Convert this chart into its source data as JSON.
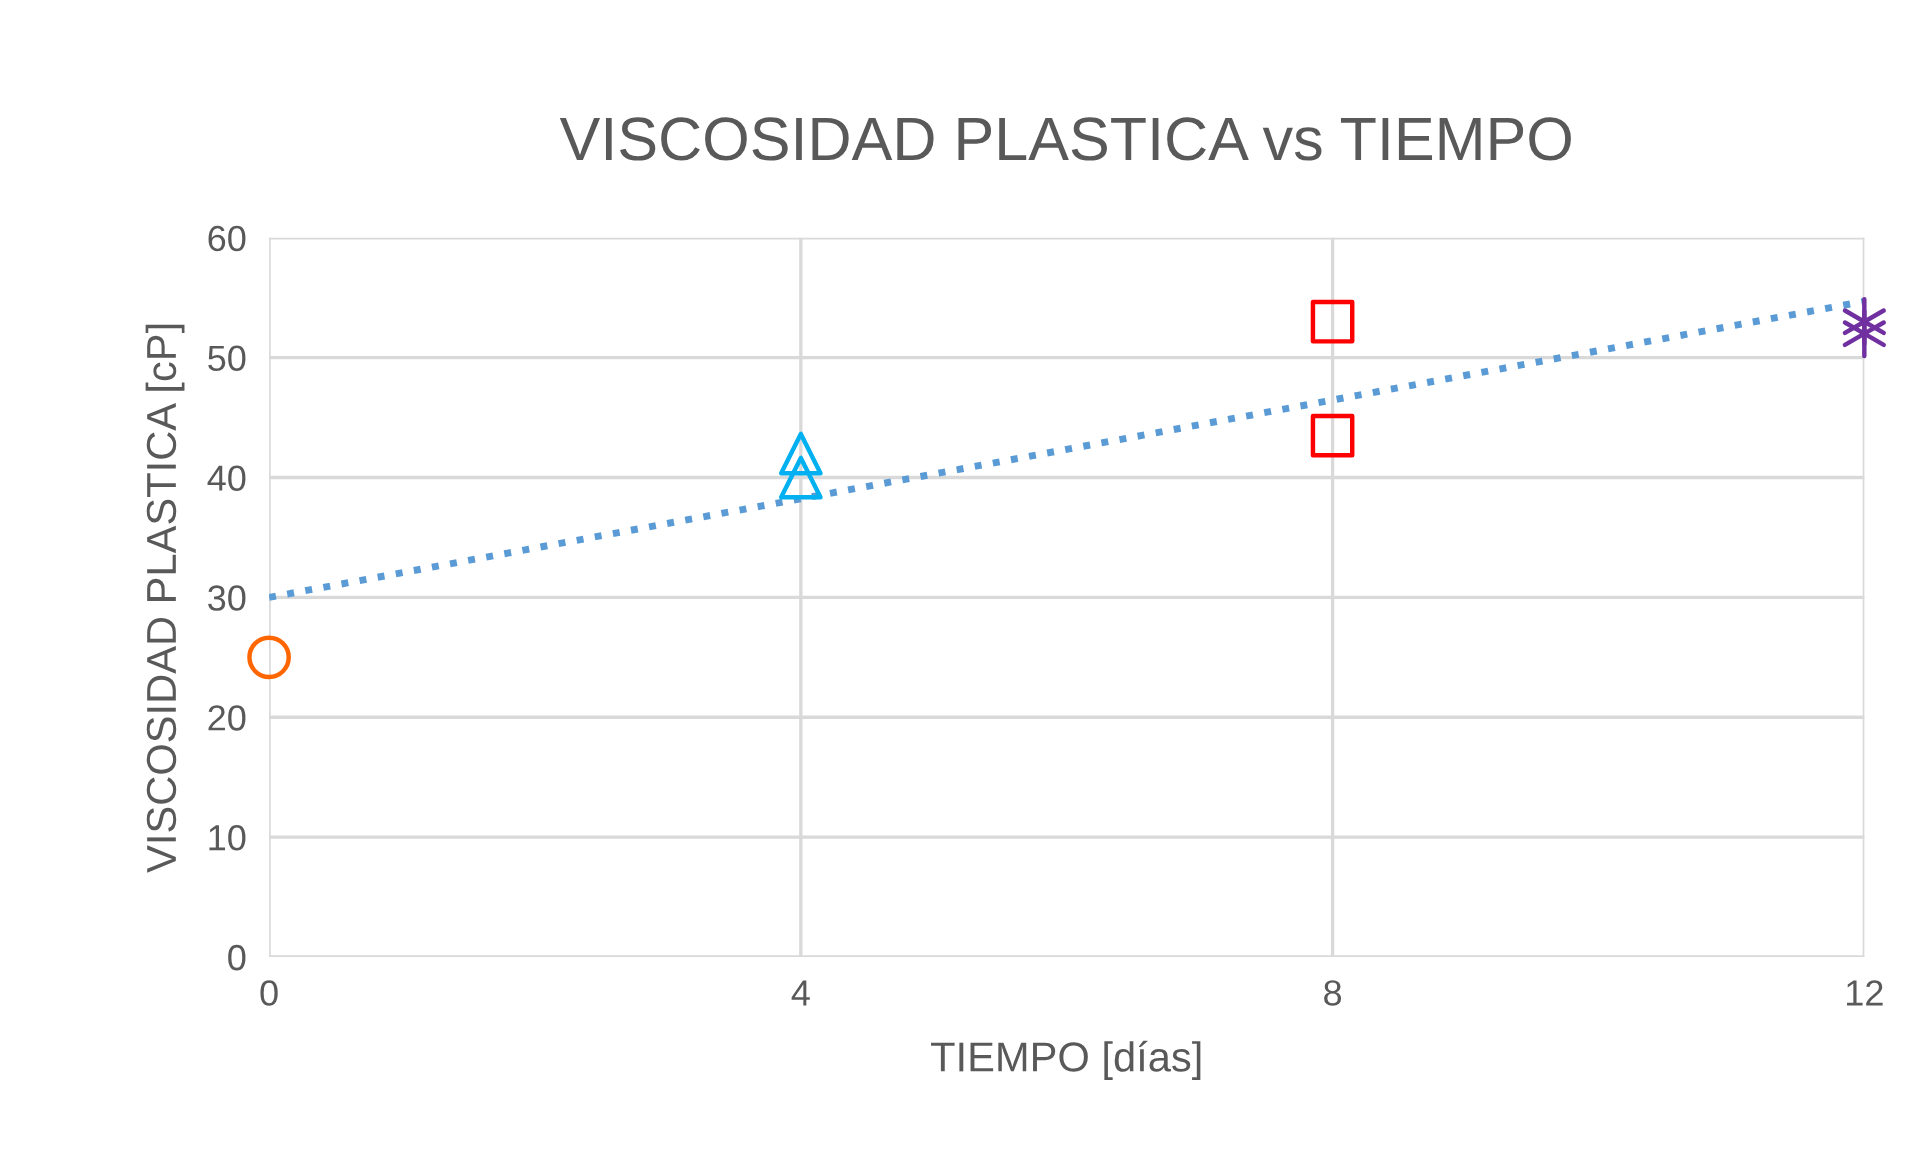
{
  "chart_data": {
    "type": "scatter",
    "title": "VISCOSIDAD PLASTICA vs TIEMPO",
    "xlabel": "TIEMPO [días]",
    "ylabel": "VISCOSIDAD PLASTICA [cP]",
    "xlim": [
      0,
      12
    ],
    "xticks": [
      0,
      4,
      8,
      12
    ],
    "ylim": [
      0,
      60
    ],
    "yticks": [
      0,
      10,
      20,
      30,
      40,
      50,
      60
    ],
    "grid": true,
    "legend": false,
    "series": [
      {
        "color": "#ff6600",
        "marker": "circle",
        "x": [
          0
        ],
        "values": [
          25
        ]
      },
      {
        "color": "#00b0f0",
        "marker": "triangle",
        "x": [
          4,
          4
        ],
        "values": [
          42,
          40
        ]
      },
      {
        "color": "#ff0000",
        "marker": "square",
        "x": [
          8,
          8
        ],
        "values": [
          53,
          43.5
        ]
      },
      {
        "color": "#7030a0",
        "marker": "cross",
        "x": [
          12,
          12
        ],
        "values": [
          53,
          52
        ]
      },
      {
        "type": "line",
        "color": "#5b9bd5",
        "line_style": "dotted",
        "marker": "none",
        "x": [
          0,
          12
        ],
        "values": [
          30,
          54.7
        ]
      }
    ]
  }
}
